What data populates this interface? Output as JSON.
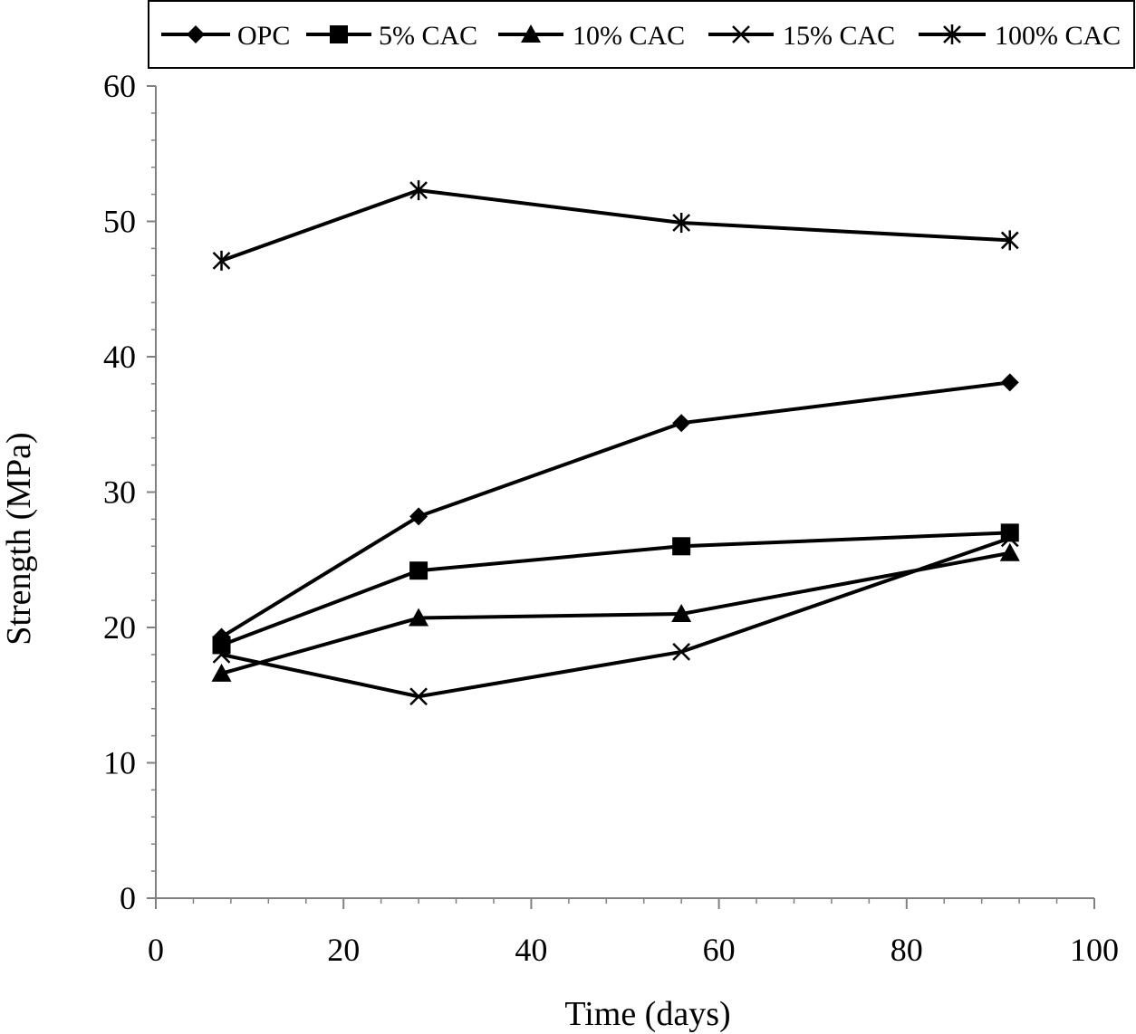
{
  "chart_data": {
    "type": "line",
    "title": "",
    "xlabel": "Time (days)",
    "ylabel": "Strength (MPa)",
    "xlim": [
      0,
      100
    ],
    "ylim": [
      0,
      60
    ],
    "x_ticks": [
      0,
      20,
      40,
      60,
      80,
      100
    ],
    "y_ticks": [
      0,
      10,
      20,
      30,
      40,
      50,
      60
    ],
    "x_minor_step": 4,
    "y_minor_step": 2,
    "grid": false,
    "legend_position": "top",
    "x": [
      7,
      28,
      56,
      91
    ],
    "series": [
      {
        "name": "OPC",
        "marker": "diamond",
        "values": [
          19.3,
          28.2,
          35.1,
          38.1
        ]
      },
      {
        "name": "5% CAC",
        "marker": "square",
        "values": [
          18.7,
          24.2,
          26.0,
          27.0
        ]
      },
      {
        "name": "10% CAC",
        "marker": "triangle",
        "values": [
          16.6,
          20.7,
          21.0,
          25.5
        ]
      },
      {
        "name": "15% CAC",
        "marker": "x",
        "values": [
          18.0,
          14.9,
          18.2,
          26.6
        ]
      },
      {
        "name": "100% CAC",
        "marker": "star",
        "values": [
          47.1,
          52.3,
          49.9,
          48.6
        ]
      }
    ],
    "colors": {
      "line": "#000000",
      "axis": "#808080",
      "background": "#ffffff"
    }
  }
}
